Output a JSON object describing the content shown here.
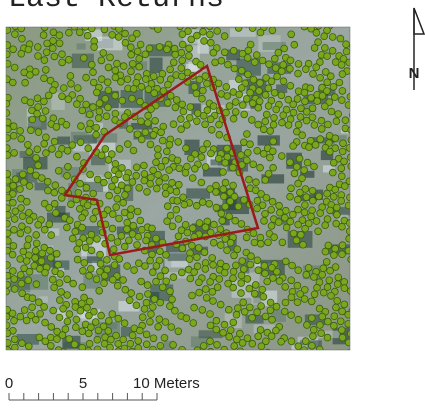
{
  "title": "Last Returns",
  "north_label": "N",
  "scale_bar": {
    "labels": [
      "0",
      "5",
      "10 Meters"
    ]
  }
}
